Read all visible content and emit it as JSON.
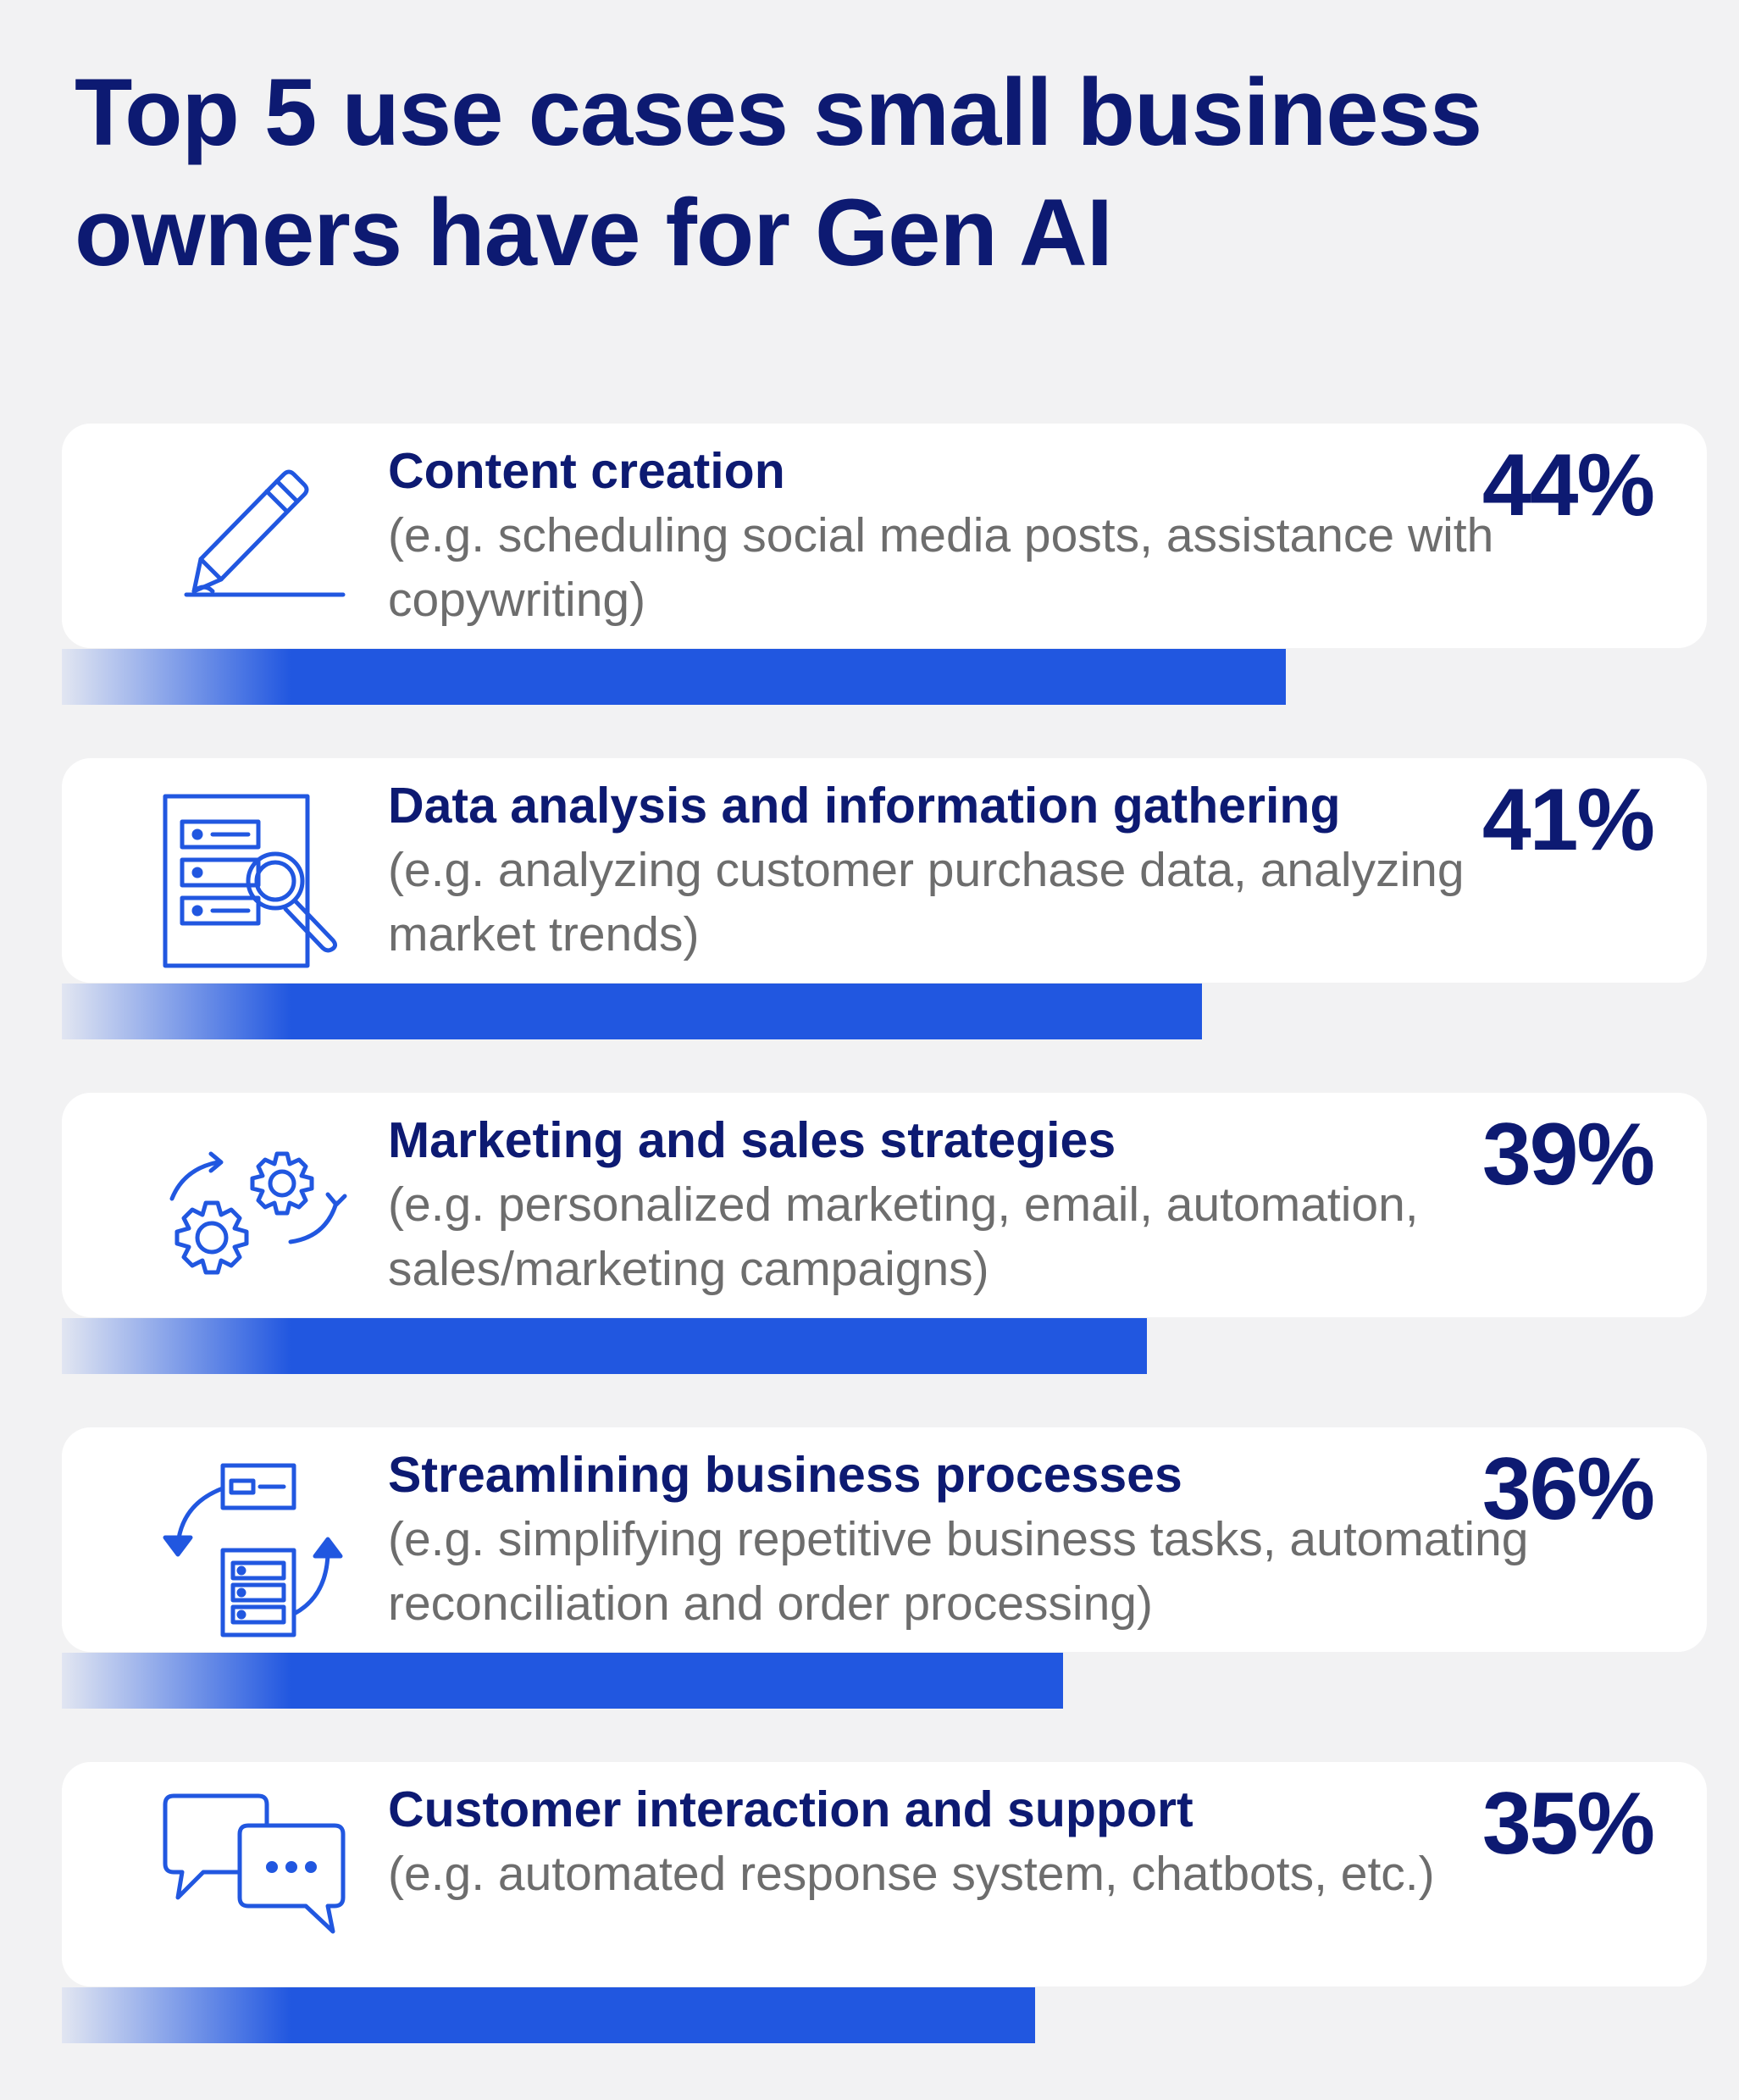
{
  "title": "Top 5 use cases small business owners have for Gen AI",
  "colors": {
    "title": "#0d1a72",
    "bar": "#2157e0",
    "description": "#6d6d6d",
    "card": "#ffffff",
    "background": "#f2f2f3"
  },
  "chart_data": {
    "type": "bar",
    "orientation": "horizontal",
    "title": "Top 5 use cases small business owners have for Gen AI",
    "unit": "%",
    "categories": [
      "Content creation",
      "Data analysis and information gathering",
      "Marketing and sales strategies",
      "Streamlining business processes",
      "Customer interaction and support"
    ],
    "descriptions": [
      "(e.g. scheduling social media posts, assistance with copywriting)",
      "(e.g. analyzing customer purchase data, analyzing market trends)",
      "(e.g. personalized marketing, email, automation, sales/marketing campaigns)",
      "(e.g. simplifying repetitive business tasks, automating reconciliation and order processing)",
      "(e.g. automated response system, chatbots, etc.)"
    ],
    "values": [
      44,
      41,
      39,
      36,
      35
    ],
    "value_labels": [
      "44%",
      "41%",
      "39%",
      "36%",
      "35%"
    ],
    "icons": [
      "pencil-icon",
      "data-search-icon",
      "gears-icon",
      "process-cycle-icon",
      "chat-bubbles-icon"
    ]
  }
}
